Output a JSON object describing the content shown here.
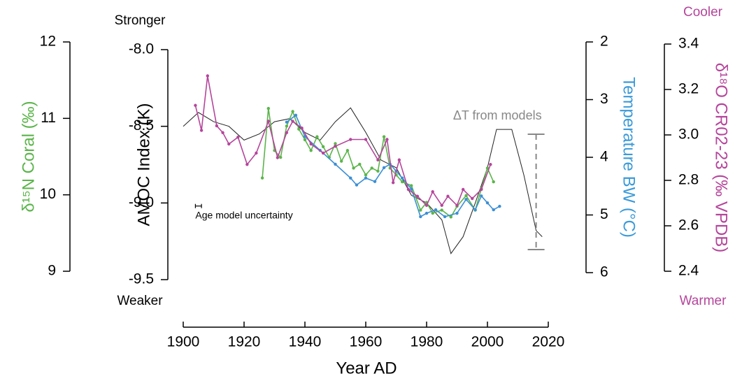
{
  "chart_data": {
    "type": "line",
    "xlabel": "Year AD",
    "xlim": [
      1900,
      2020
    ],
    "xticks": [
      1900,
      1920,
      1940,
      1960,
      1980,
      2000,
      2020
    ],
    "y_axes": [
      {
        "label": "δ¹⁵N Coral (‰)",
        "color": "#5bb54a",
        "lim": [
          9,
          12
        ],
        "ticks": [
          9,
          10,
          11,
          12
        ]
      },
      {
        "label": "AMOC Index (K)",
        "color": "#000000",
        "lim": [
          -9.5,
          -8.0
        ],
        "ticks": [
          {
            "value": -9.5,
            "label": "-9.5"
          },
          {
            "value": -9.0,
            "label": "-9.0"
          },
          {
            "value": -8.5,
            "label": "-8.5"
          },
          {
            "value": -8.0,
            "label": "-8.0"
          }
        ]
      },
      {
        "label": "Temperature  BW (°C)",
        "color": "#3b9ad9",
        "lim": [
          6,
          2
        ],
        "ticks": [
          2,
          3,
          4,
          5,
          6
        ]
      },
      {
        "label": "δ¹⁸O CR02-23 (‰ VPDB)",
        "color": "#b5459b",
        "lim": [
          2.4,
          3.4
        ],
        "ticks": [
          {
            "value": 2.4,
            "label": "2.4"
          },
          {
            "value": 2.6,
            "label": "2.6"
          },
          {
            "value": 2.8,
            "label": "2.8"
          },
          {
            "value": 3.0,
            "label": "3.0"
          },
          {
            "value": 3.2,
            "label": "3.2"
          },
          {
            "value": 3.4,
            "label": "3.4"
          }
        ]
      }
    ],
    "annotations": {
      "stronger": "Stronger",
      "weaker": "Weaker",
      "cooler": "Cooler",
      "warmer": "Warmer"
    },
    "delta_t": {
      "label": "ΔT from models",
      "x": 2016,
      "values": [
        3.6,
        5.6
      ]
    },
    "age_bar": {
      "label": "Age model uncertainty",
      "x": [
        1904,
        1906
      ],
      "y": -9.02
    },
    "series": [
      {
        "axis": 1,
        "color": "#222222",
        "markers": false,
        "x": [
          1900,
          1905,
          1910,
          1915,
          1920,
          1925,
          1930,
          1935,
          1940,
          1945,
          1950,
          1955,
          1960,
          1965,
          1970,
          1975,
          1980,
          1985,
          1988,
          1992,
          1996,
          2000,
          2003,
          2008,
          2012,
          2016,
          2018
        ],
        "values": [
          -8.5,
          -8.41,
          -8.47,
          -8.5,
          -8.59,
          -8.55,
          -8.47,
          -8.45,
          -8.54,
          -8.59,
          -8.47,
          -8.38,
          -8.54,
          -8.72,
          -8.77,
          -8.95,
          -9.0,
          -9.11,
          -9.33,
          -9.22,
          -9.0,
          -8.77,
          -8.52,
          -8.52,
          -8.82,
          -9.18,
          -9.22
        ]
      },
      {
        "axis": 0,
        "color": "#5bb54a",
        "markers": true,
        "x": [
          1926,
          1928,
          1930,
          1932,
          1934,
          1936,
          1938,
          1940,
          1942,
          1944,
          1946,
          1948,
          1950,
          1952,
          1954,
          1956,
          1958,
          1960,
          1962,
          1964,
          1966,
          1968,
          1970,
          1972,
          1975,
          1978,
          1980,
          1982,
          1985,
          1988,
          1990,
          1993,
          1996,
          1998,
          2000,
          2002
        ],
        "values": [
          10.22,
          11.13,
          10.58,
          10.49,
          10.9,
          11.09,
          10.86,
          10.72,
          10.58,
          10.76,
          10.63,
          10.49,
          10.67,
          10.44,
          10.58,
          10.35,
          10.4,
          10.26,
          10.35,
          10.31,
          10.76,
          10.35,
          10.26,
          10.17,
          10.12,
          9.8,
          9.9,
          9.76,
          9.8,
          9.71,
          9.85,
          9.99,
          9.8,
          10.08,
          10.35,
          10.17
        ]
      },
      {
        "axis": 2,
        "color": "#3b8fd6",
        "markers": true,
        "x": [
          1934,
          1937,
          1940,
          1945,
          1950,
          1955,
          1957,
          1960,
          1963,
          1966,
          1968,
          1970,
          1972,
          1975,
          1978,
          1980,
          1983,
          1986,
          1990,
          1993,
          1996,
          1998,
          2000,
          2002,
          2004
        ],
        "values": [
          3.39,
          3.27,
          3.64,
          3.88,
          4.12,
          4.36,
          4.48,
          4.36,
          4.42,
          4.18,
          4.12,
          4.24,
          4.36,
          4.55,
          5.03,
          4.97,
          4.91,
          5.03,
          4.97,
          4.73,
          4.91,
          4.67,
          4.79,
          4.91,
          4.85
        ]
      },
      {
        "axis": 3,
        "color": "#b5459b",
        "markers": true,
        "x": [
          1904,
          1906,
          1908,
          1911,
          1913,
          1915,
          1918,
          1921,
          1924,
          1928,
          1931,
          1934,
          1936,
          1939,
          1942,
          1946,
          1950,
          1955,
          1960,
          1964,
          1967,
          1969,
          1971,
          1974,
          1977,
          1980,
          1982,
          1985,
          1987,
          1990,
          1992,
          1995,
          1998,
          2001
        ],
        "values": [
          3.13,
          3.02,
          3.26,
          3.04,
          3.01,
          2.96,
          2.99,
          2.87,
          2.92,
          3.06,
          2.9,
          3.01,
          3.06,
          3.03,
          2.96,
          2.92,
          2.95,
          2.98,
          2.98,
          2.89,
          2.98,
          2.79,
          2.89,
          2.76,
          2.73,
          2.69,
          2.75,
          2.69,
          2.73,
          2.69,
          2.76,
          2.72,
          2.76,
          2.87
        ]
      }
    ]
  }
}
